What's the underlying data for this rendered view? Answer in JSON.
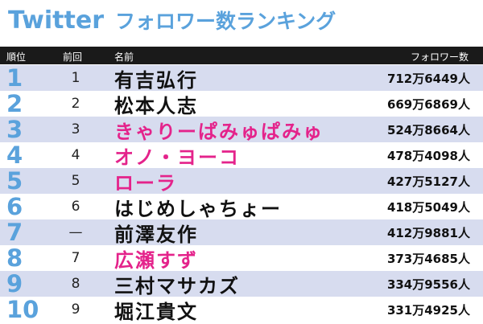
{
  "title": {
    "brand": "Twitter",
    "rest": "フォロワー数ランキング"
  },
  "colors": {
    "accent_blue": "#5aa2dc",
    "pink": "#e4238b",
    "stripe": "#d7dcef",
    "header_bg": "#1a1a1a"
  },
  "header": {
    "rank": "順位",
    "prev": "前回",
    "name": "名前",
    "followers": "フォロワー数"
  },
  "rows": [
    {
      "rank": "1",
      "prev": "1",
      "name": "有吉弘行",
      "followers": "712万6449人",
      "pink": false
    },
    {
      "rank": "2",
      "prev": "2",
      "name": "松本人志",
      "followers": "669万6869人",
      "pink": false
    },
    {
      "rank": "3",
      "prev": "3",
      "name": "きゃりーぱみゅぱみゅ",
      "followers": "524万8664人",
      "pink": true
    },
    {
      "rank": "4",
      "prev": "4",
      "name": "オノ・ヨーコ",
      "followers": "478万4098人",
      "pink": true
    },
    {
      "rank": "5",
      "prev": "5",
      "name": "ローラ",
      "followers": "427万5127人",
      "pink": true
    },
    {
      "rank": "6",
      "prev": "6",
      "name": "はじめしゃちょー",
      "followers": "418万5049人",
      "pink": false
    },
    {
      "rank": "7",
      "prev": "—",
      "name": "前澤友作",
      "followers": "412万9881人",
      "pink": false
    },
    {
      "rank": "8",
      "prev": "7",
      "name": "広瀬すず",
      "followers": "373万4685人",
      "pink": true
    },
    {
      "rank": "9",
      "prev": "8",
      "name": "三村マサカズ",
      "followers": "334万9556人",
      "pink": false
    },
    {
      "rank": "10",
      "prev": "9",
      "name": "堀江貴文",
      "followers": "331万4925人",
      "pink": false
    }
  ]
}
